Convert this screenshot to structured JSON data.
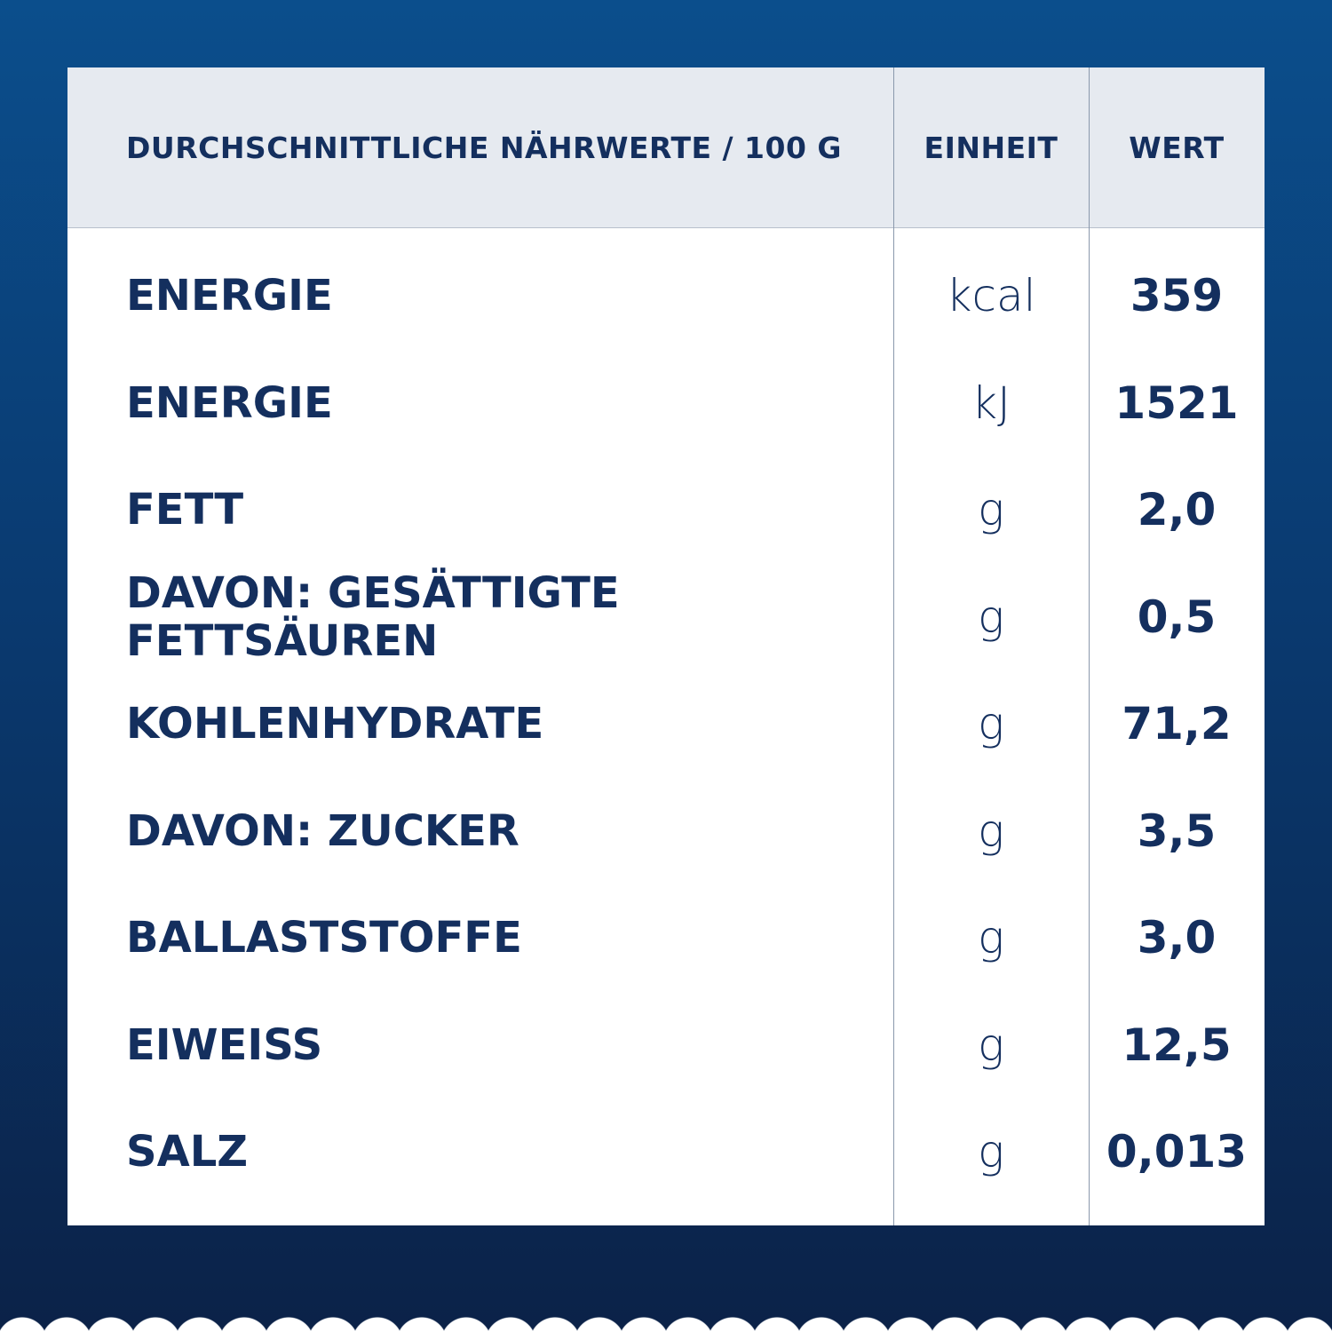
{
  "table": {
    "header": [
      "DURCHSCHNITTLICHE NÄHRWERTE / 100 G",
      "EINHEIT",
      "WERT"
    ],
    "rows": [
      [
        "ENERGIE",
        "kcal",
        "359"
      ],
      [
        "ENERGIE",
        "kJ",
        "1521"
      ],
      [
        "FETT",
        "g",
        "2,0"
      ],
      [
        "DAVON: GESÄTTIGTE FETTSÄUREN",
        "g",
        "0,5"
      ],
      [
        "KOHLENHYDRATE",
        "g",
        "71,2"
      ],
      [
        "DAVON: ZUCKER",
        "g",
        "3,5"
      ],
      [
        "BALLASTSTOFFE",
        "g",
        "3,0"
      ],
      [
        "EIWEISS",
        "g",
        "12,5"
      ],
      [
        "SALZ",
        "g",
        "0,013"
      ]
    ]
  }
}
